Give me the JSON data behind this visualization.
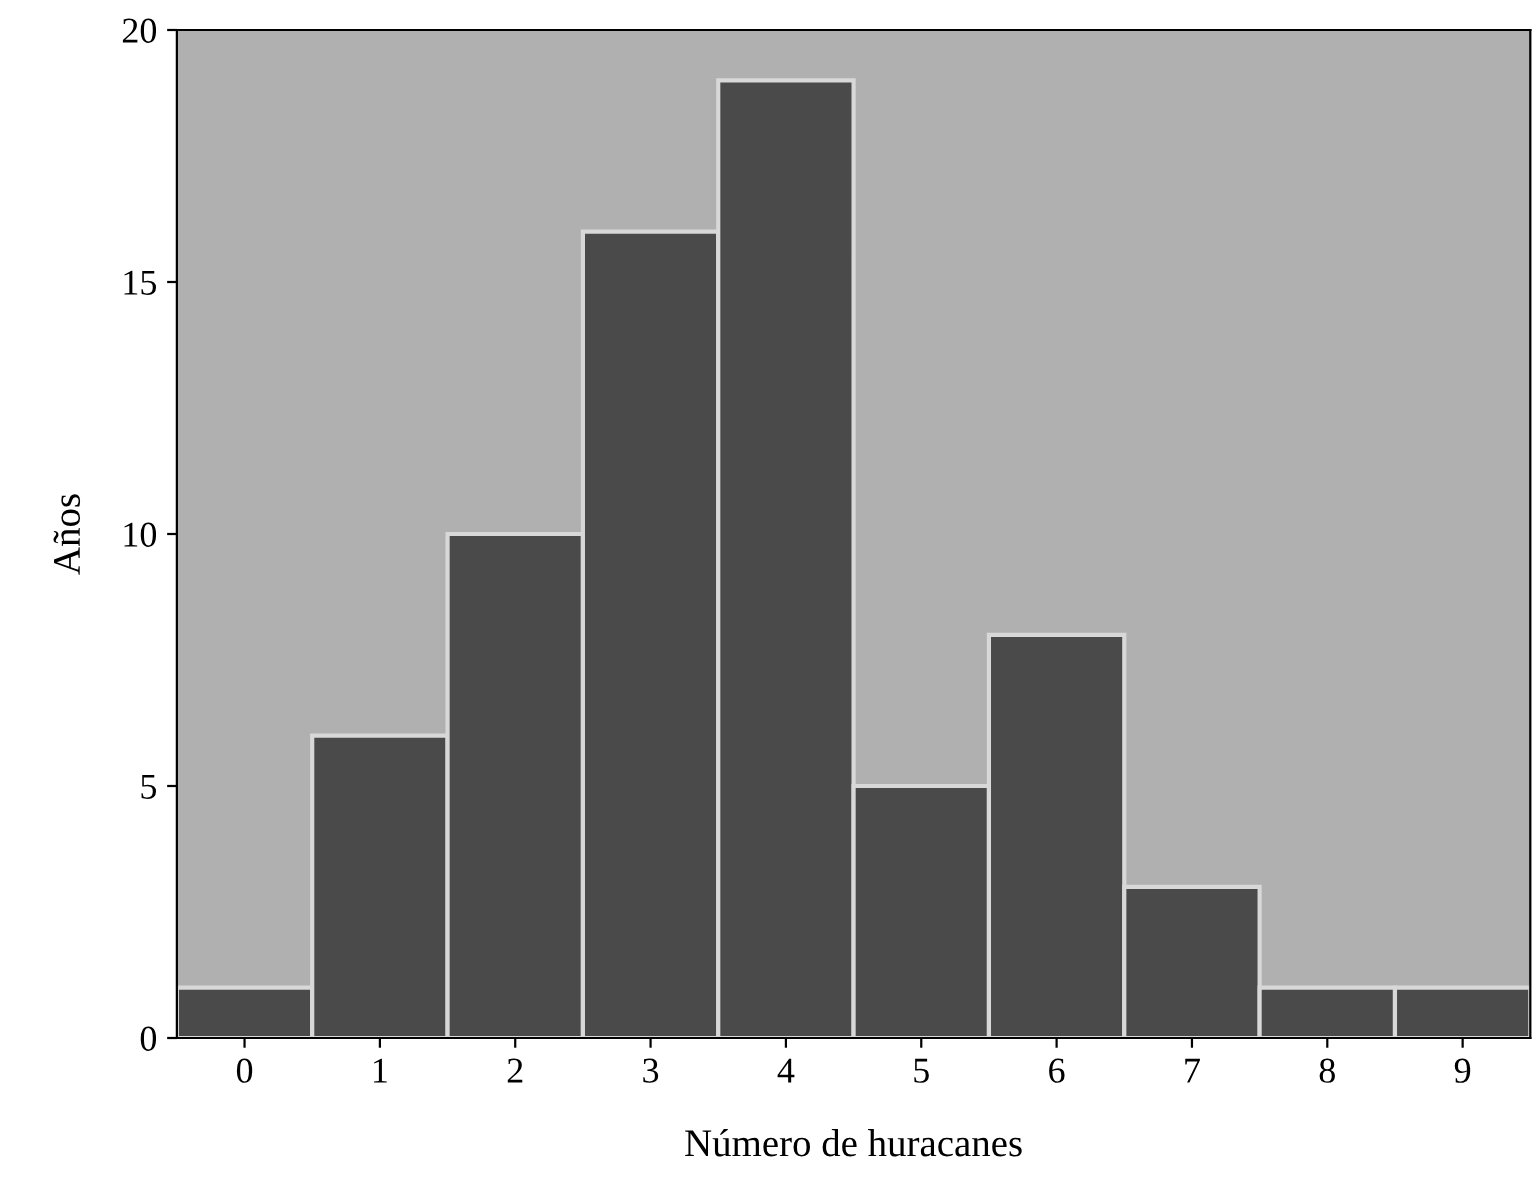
{
  "chart_data": {
    "type": "histogram",
    "xlabel": "Número de huracanes",
    "ylabel": "Años",
    "bins": [
      -0.5,
      0.5,
      1.5,
      2.5,
      3.5,
      4.5,
      5.5,
      6.5,
      7.5,
      8.5,
      9.5
    ],
    "values": [
      1,
      6,
      10,
      16,
      19,
      5,
      8,
      3,
      1,
      1
    ],
    "color": "#4a4a4a",
    "xlim": [
      -0.5,
      9.5
    ],
    "xticks": [
      0,
      1,
      2,
      3,
      4,
      5,
      6,
      7,
      8,
      9
    ],
    "ylim": [
      0,
      20
    ],
    "yticks": [
      0,
      5,
      10,
      15,
      20
    ],
    "grid": false
  }
}
